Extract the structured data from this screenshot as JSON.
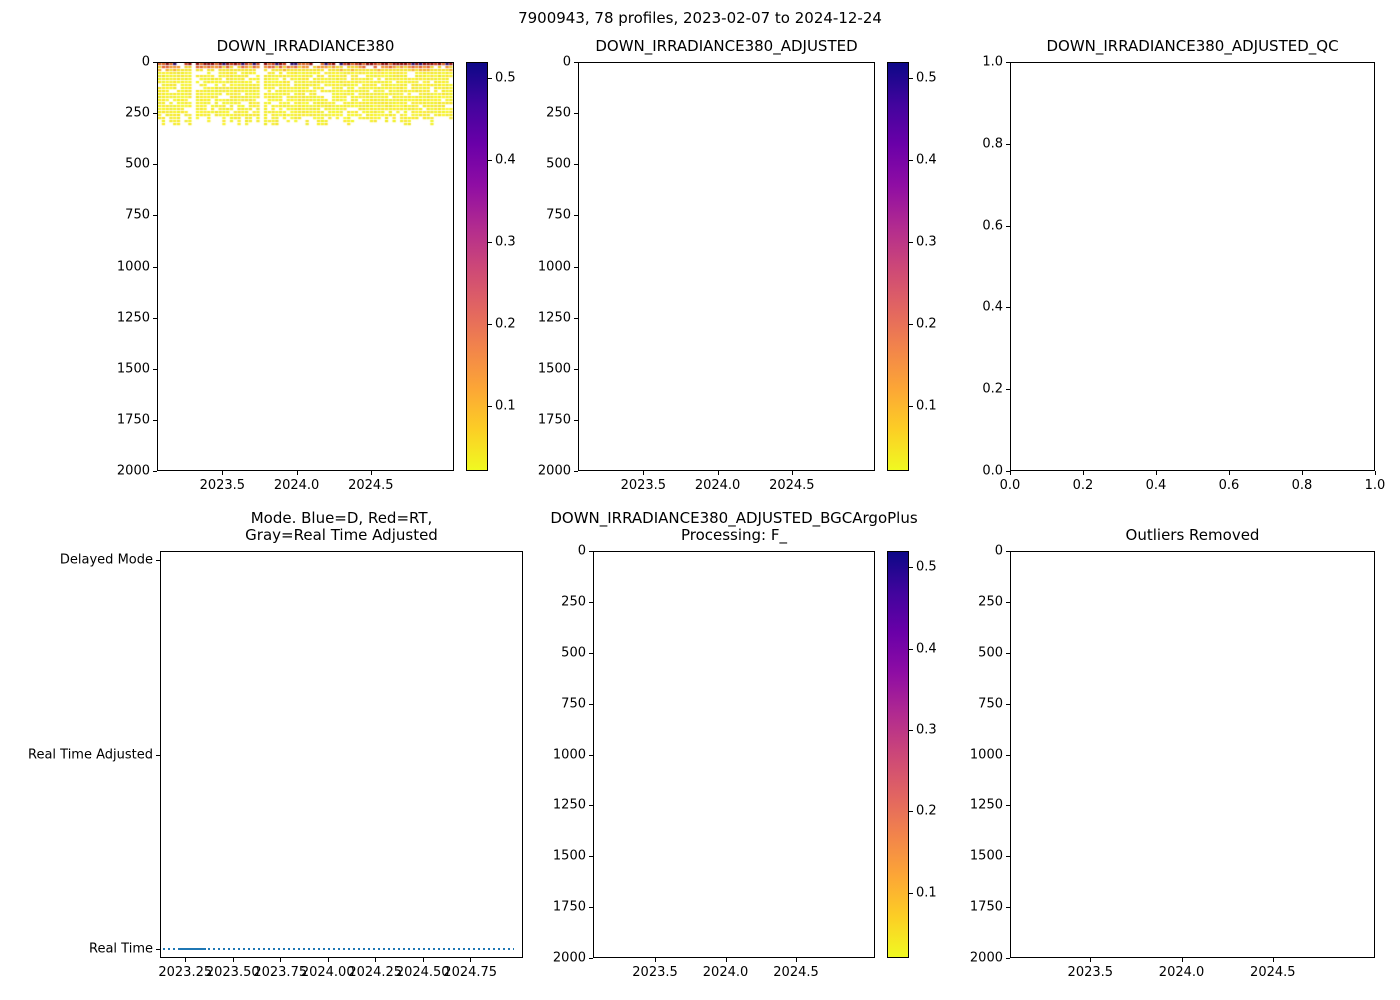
{
  "figure": {
    "suptitle": "7900943, 78 profiles, 2023-02-07 to 2024-12-24"
  },
  "colors": {
    "mode_line_blue": "#1f77b4",
    "colormap_low_yellow": "#f0f921",
    "colormap_high_navy": "#0d0887",
    "axes_spine": "#000000",
    "background": "#ffffff"
  },
  "chart_data": [
    {
      "id": "irr380",
      "type": "heatmap",
      "title_lines": [
        "DOWN_IRRADIANCE380"
      ],
      "xlim": [
        2023.06,
        2025.06
      ],
      "ylim_top_bottom": [
        0,
        2000
      ],
      "x_ticks": [
        2023.5,
        2024.0,
        2024.5
      ],
      "x_tick_labels": [
        "2023.5",
        "2024.0",
        "2024.5"
      ],
      "y_ticks": [
        0,
        250,
        500,
        750,
        1000,
        1250,
        1500,
        1750,
        2000
      ],
      "y_tick_labels": [
        "0",
        "250",
        "500",
        "750",
        "1000",
        "1250",
        "1500",
        "1750",
        "2000"
      ],
      "colorbar": {
        "vmin": 0.02,
        "vmax": 0.52,
        "ticks": [
          0.1,
          0.2,
          0.3,
          0.4,
          0.5
        ],
        "tick_labels": [
          "0.1",
          "0.2",
          "0.3",
          "0.4",
          "0.5"
        ],
        "colormap": "plasma-style: yellow = low, orange/pink/purple mid, dark navy = high"
      },
      "data_summary": {
        "n_profiles": 78,
        "time_span": [
          "2023-02-07",
          "2024-12-24"
        ],
        "data_depth_extent_m": [
          0,
          310
        ],
        "surface_band_values": "approx 0.2-0.52 (red/dark navy pixels) in top ~10 m",
        "subsurface_values": "approx < 0.08 (yellow) from ~10 m down to ~300 m; white (no data) below ~300 m",
        "missing_profile_gaps_x": [
          2023.5,
          2024.4
        ]
      }
    },
    {
      "id": "irr380-adjusted",
      "type": "heatmap",
      "title_lines": [
        "DOWN_IRRADIANCE380_ADJUSTED"
      ],
      "xlim": [
        2023.06,
        2025.06
      ],
      "ylim_top_bottom": [
        0,
        2000
      ],
      "x_ticks": [
        2023.5,
        2024.0,
        2024.5
      ],
      "x_tick_labels": [
        "2023.5",
        "2024.0",
        "2024.5"
      ],
      "y_ticks": [
        0,
        250,
        500,
        750,
        1000,
        1250,
        1500,
        1750,
        2000
      ],
      "y_tick_labels": [
        "0",
        "250",
        "500",
        "750",
        "1000",
        "1250",
        "1500",
        "1750",
        "2000"
      ],
      "colorbar": {
        "vmin": 0.02,
        "vmax": 0.52,
        "ticks": [
          0.1,
          0.2,
          0.3,
          0.4,
          0.5
        ],
        "tick_labels": [
          "0.1",
          "0.2",
          "0.3",
          "0.4",
          "0.5"
        ],
        "colormap": "plasma-style: yellow = low, orange/pink/purple mid, dark navy = high"
      },
      "data_summary": {
        "empty": true,
        "note": "axes empty - no adjusted data plotted"
      }
    },
    {
      "id": "irr380-adjusted-qc",
      "type": "scatter",
      "title_lines": [
        "DOWN_IRRADIANCE380_ADJUSTED_QC"
      ],
      "xlim": [
        0.0,
        1.0
      ],
      "ylim_top_bottom": [
        1.0,
        0.0
      ],
      "x_ticks": [
        0.0,
        0.2,
        0.4,
        0.6,
        0.8,
        1.0
      ],
      "x_tick_labels": [
        "0.0",
        "0.2",
        "0.4",
        "0.6",
        "0.8",
        "1.0"
      ],
      "y_ticks": [
        1.0,
        0.8,
        0.6,
        0.4,
        0.2,
        0.0
      ],
      "y_tick_labels": [
        "1.0",
        "0.8",
        "0.6",
        "0.4",
        "0.2",
        "0.0"
      ],
      "data_summary": {
        "empty": true,
        "note": "axes empty - no QC data plotted"
      }
    },
    {
      "id": "mode",
      "type": "line",
      "title_lines": [
        "Mode. Blue=D, Red=RT,",
        "Gray=Real Time Adjusted"
      ],
      "xlim": [
        2023.117,
        2025.028
      ],
      "ylim_top_bottom": [
        2.045,
        -0.045
      ],
      "x_ticks": [
        2023.25,
        2023.5,
        2023.75,
        2024.0,
        2024.25,
        2024.5,
        2024.75
      ],
      "x_tick_labels": [
        "2023.25",
        "2023.50",
        "2023.75",
        "2024.00",
        "2024.25",
        "2024.50",
        "2024.75"
      ],
      "y_ticks": [
        2,
        1,
        0
      ],
      "y_tick_labels": [
        "Delayed Mode",
        "Real Time Adjusted",
        "Real Time"
      ],
      "series": [
        {
          "name": "processing mode per profile",
          "value_constant": "Real Time",
          "y_value": 0,
          "x_start": 2023.1,
          "x_end": 2024.98,
          "style": "dotted",
          "color": "#1f77b4",
          "dense_segment_x": [
            2023.22,
            2023.36
          ]
        }
      ],
      "data_summary": {
        "note": "all 78 profiles are Real Time mode (dotted blue line along bottom category)"
      }
    },
    {
      "id": "irr380-adjusted-bgcargoplus",
      "type": "heatmap",
      "title_lines": [
        "DOWN_IRRADIANCE380_ADJUSTED_BGCArgoPlus",
        "Processing: F_"
      ],
      "xlim": [
        2023.06,
        2025.06
      ],
      "ylim_top_bottom": [
        0,
        2000
      ],
      "x_ticks": [
        2023.5,
        2024.0,
        2024.5
      ],
      "x_tick_labels": [
        "2023.5",
        "2024.0",
        "2024.5"
      ],
      "y_ticks": [
        0,
        250,
        500,
        750,
        1000,
        1250,
        1500,
        1750,
        2000
      ],
      "y_tick_labels": [
        "0",
        "250",
        "500",
        "750",
        "1000",
        "1250",
        "1500",
        "1750",
        "2000"
      ],
      "colorbar": {
        "vmin": 0.02,
        "vmax": 0.52,
        "ticks": [
          0.1,
          0.2,
          0.3,
          0.4,
          0.5
        ],
        "tick_labels": [
          "0.1",
          "0.2",
          "0.3",
          "0.4",
          "0.5"
        ],
        "colormap": "plasma-style: yellow = low, orange/pink/purple mid, dark navy = high"
      },
      "data_summary": {
        "empty": true,
        "note": "axes empty - no BGCArgoPlus processed data plotted"
      }
    },
    {
      "id": "outliers-removed",
      "type": "scatter",
      "title_lines": [
        "Outliers Removed"
      ],
      "xlim": [
        2023.06,
        2025.06
      ],
      "ylim_top_bottom": [
        0,
        2000
      ],
      "x_ticks": [
        2023.5,
        2024.0,
        2024.5
      ],
      "x_tick_labels": [
        "2023.5",
        "2024.0",
        "2024.5"
      ],
      "y_ticks": [
        0,
        250,
        500,
        750,
        1000,
        1250,
        1500,
        1750,
        2000
      ],
      "y_tick_labels": [
        "0",
        "250",
        "500",
        "750",
        "1000",
        "1250",
        "1500",
        "1750",
        "2000"
      ],
      "data_summary": {
        "empty": true,
        "note": "axes empty - no outlier-removed data plotted"
      }
    }
  ]
}
